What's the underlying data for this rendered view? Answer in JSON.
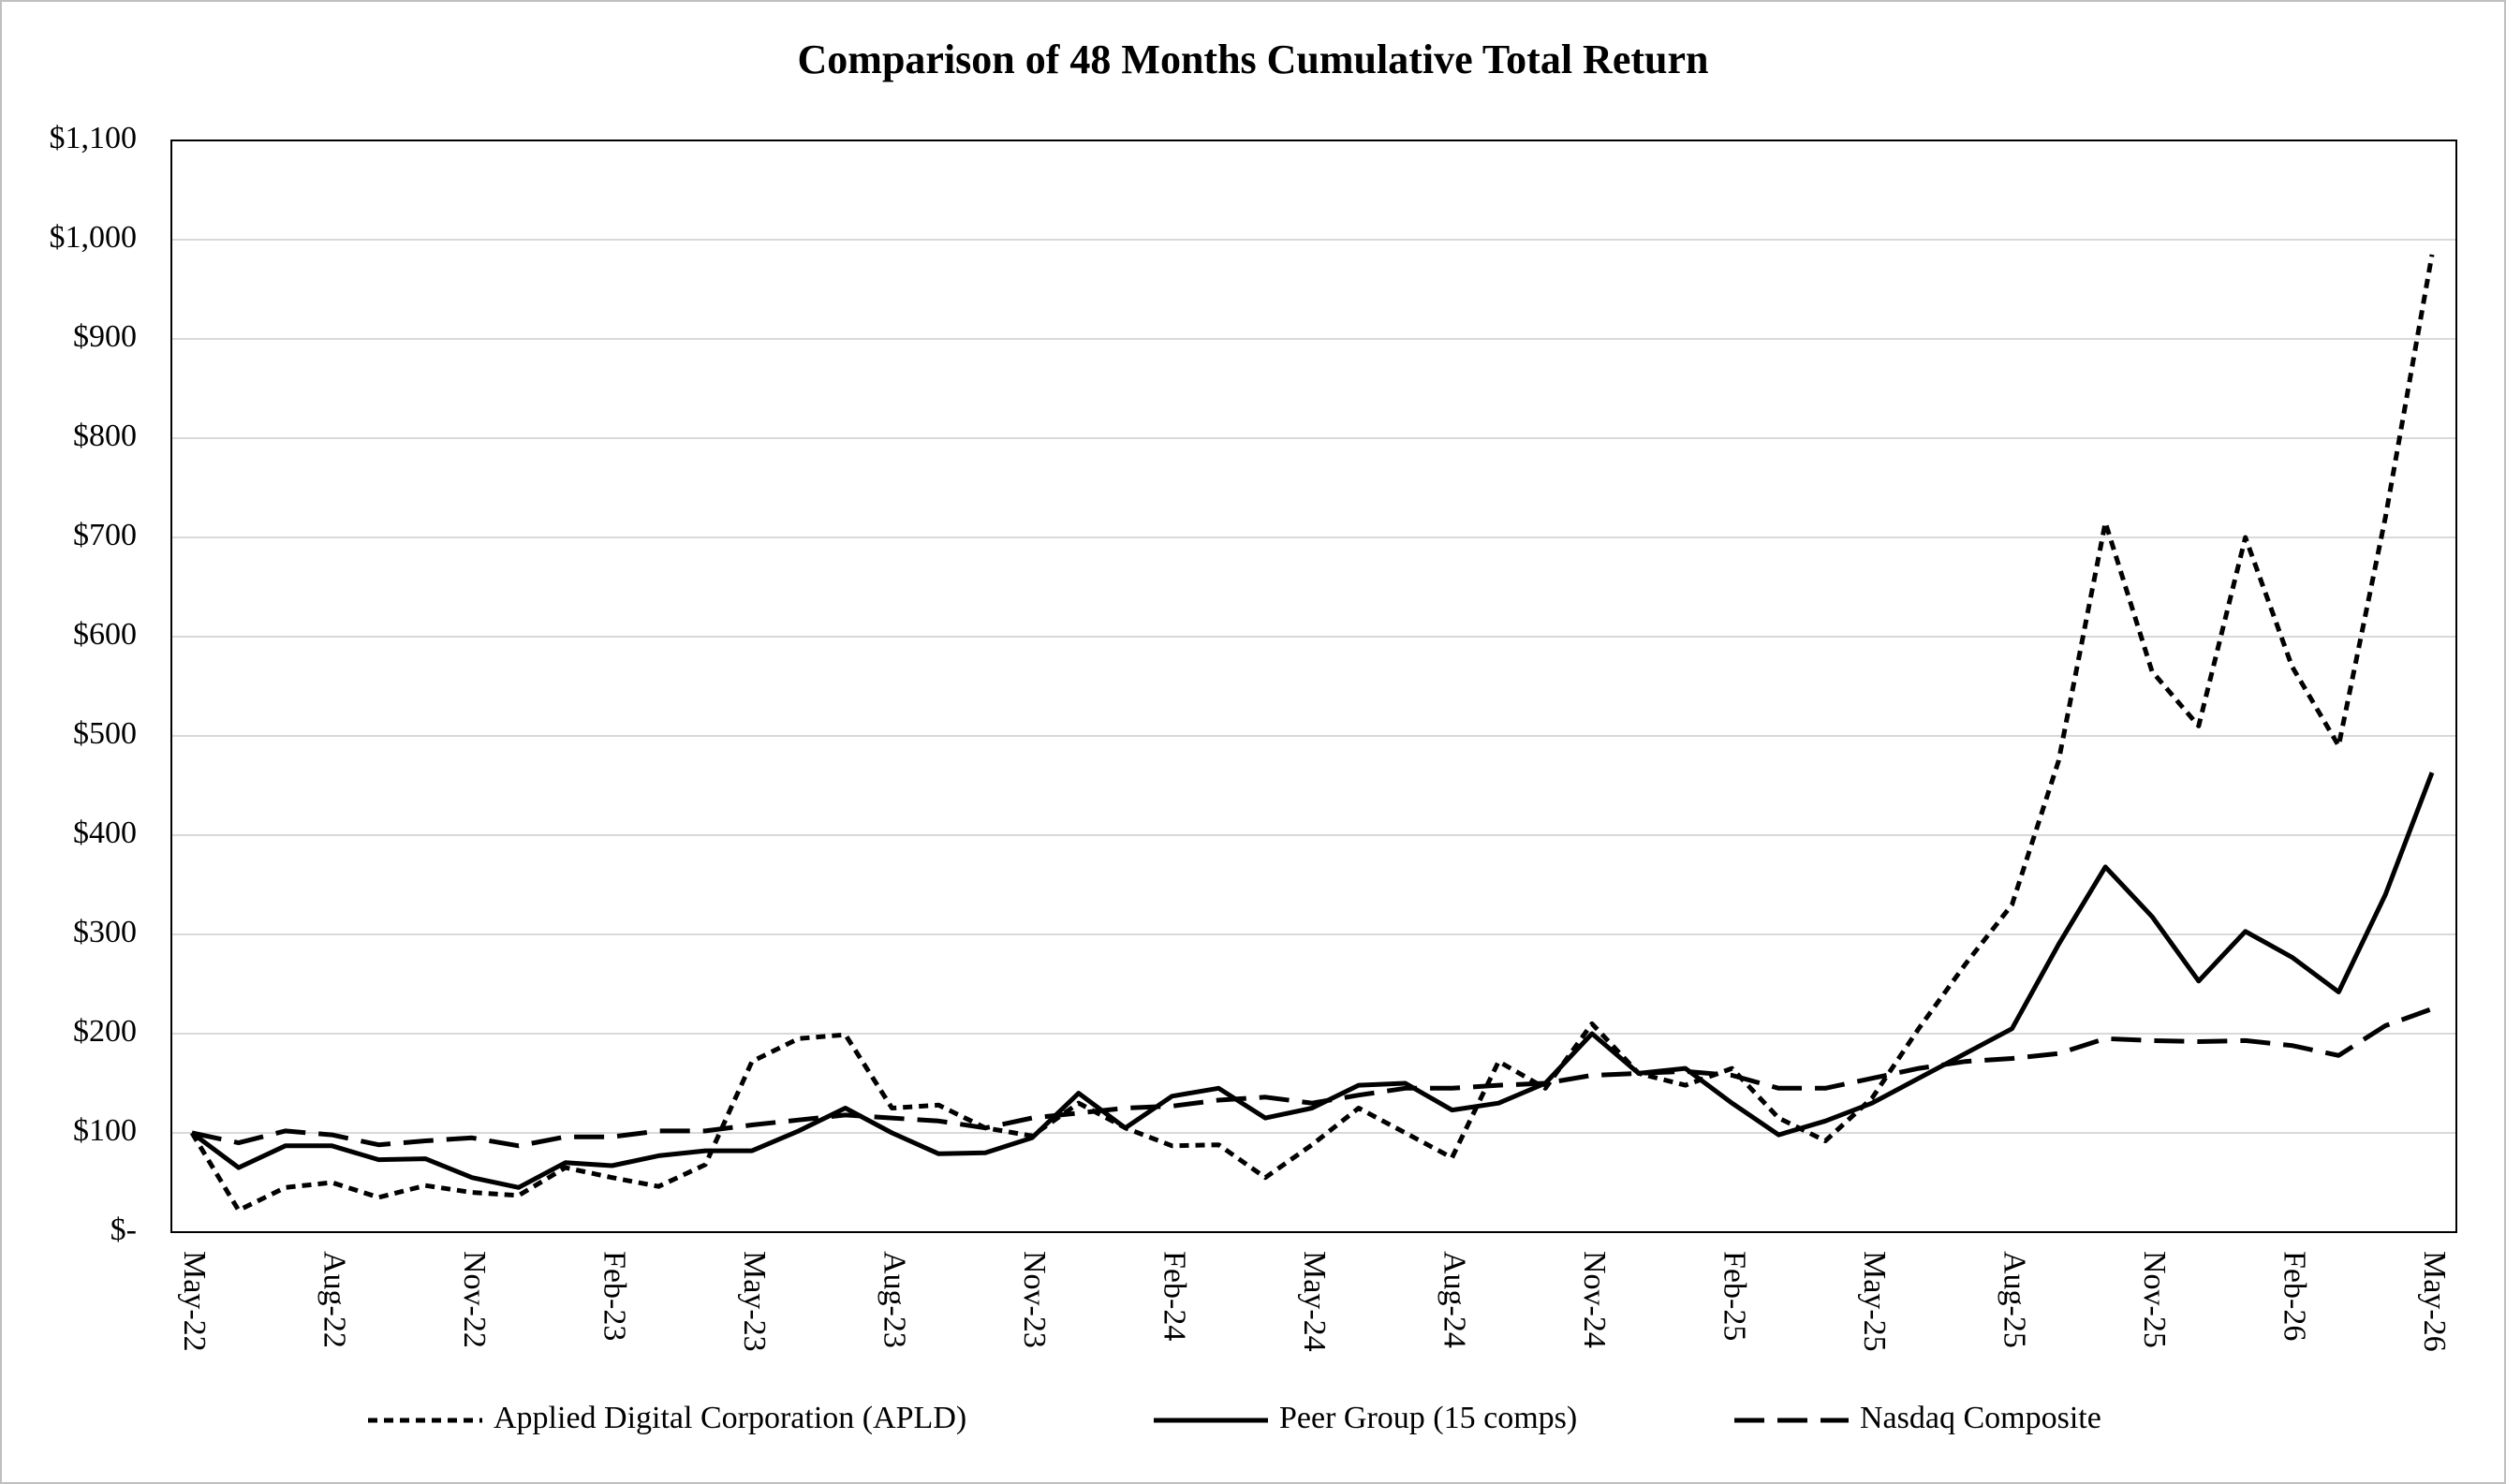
{
  "chart_data": {
    "type": "line",
    "title": "Comparison of 48 Months Cumulative Total Return",
    "categories": [
      "May-22",
      null,
      null,
      "Aug-22",
      null,
      null,
      "Nov-22",
      null,
      null,
      "Feb-23",
      null,
      null,
      "May-23",
      null,
      null,
      "Aug-23",
      null,
      null,
      "Nov-23",
      null,
      null,
      "Feb-24",
      null,
      null,
      "May-24",
      null,
      null,
      "Aug-24",
      null,
      null,
      "Nov-24",
      null,
      null,
      "Feb-25",
      null,
      null,
      "May-25",
      null,
      null,
      "Aug-25",
      null,
      null,
      "Nov-25",
      null,
      null,
      "Feb-26",
      null,
      null,
      "May-26"
    ],
    "series": [
      {
        "name": "Applied Digital Corporation (APLD)",
        "color": "#000000",
        "dash": "dotted",
        "values": [
          100,
          22,
          45,
          50,
          35,
          47,
          40,
          37,
          65,
          55,
          46,
          68,
          172,
          195,
          199,
          125,
          128,
          105,
          97,
          130,
          105,
          87,
          88,
          55,
          88,
          125,
          100,
          75,
          172,
          145,
          210,
          160,
          148,
          165,
          115,
          92,
          135,
          205,
          270,
          330,
          475,
          715,
          565,
          510,
          700,
          570,
          490,
          720,
          985
        ]
      },
      {
        "name": "Peer Group (15 comps)",
        "color": "#000000",
        "dash": "solid",
        "values": [
          100,
          65,
          87,
          87,
          73,
          74,
          55,
          45,
          70,
          67,
          77,
          82,
          82,
          102,
          125,
          100,
          79,
          80,
          95,
          140,
          105,
          137,
          145,
          115,
          125,
          148,
          150,
          123,
          130,
          150,
          200,
          160,
          165,
          130,
          98,
          112,
          130,
          155,
          180,
          205,
          290,
          368,
          318,
          253,
          303,
          277,
          242,
          340,
          463
        ]
      },
      {
        "name": "Nasdaq Composite",
        "color": "#000000",
        "dash": "dashed",
        "values": [
          100,
          90,
          102,
          98,
          88,
          92,
          95,
          87,
          96,
          96,
          102,
          102,
          108,
          113,
          118,
          115,
          112,
          105,
          115,
          120,
          125,
          127,
          133,
          136,
          130,
          138,
          145,
          145,
          148,
          150,
          158,
          160,
          162,
          158,
          145,
          145,
          155,
          165,
          172,
          175,
          180,
          195,
          193,
          192,
          193,
          188,
          178,
          208,
          225
        ]
      }
    ],
    "ylim": [
      0,
      1100
    ],
    "yticks": [
      {
        "value": 0,
        "label": "$-"
      },
      {
        "value": 100,
        "label": "$100"
      },
      {
        "value": 200,
        "label": "$200"
      },
      {
        "value": 300,
        "label": "$300"
      },
      {
        "value": 400,
        "label": "$400"
      },
      {
        "value": 500,
        "label": "$500"
      },
      {
        "value": 600,
        "label": "$600"
      },
      {
        "value": 700,
        "label": "$700"
      },
      {
        "value": 800,
        "label": "$800"
      },
      {
        "value": 900,
        "label": "$900"
      },
      {
        "value": 1000,
        "label": "$1,000"
      },
      {
        "value": 1100,
        "label": "$1,100"
      }
    ],
    "grid": true,
    "legend": "bottom"
  }
}
